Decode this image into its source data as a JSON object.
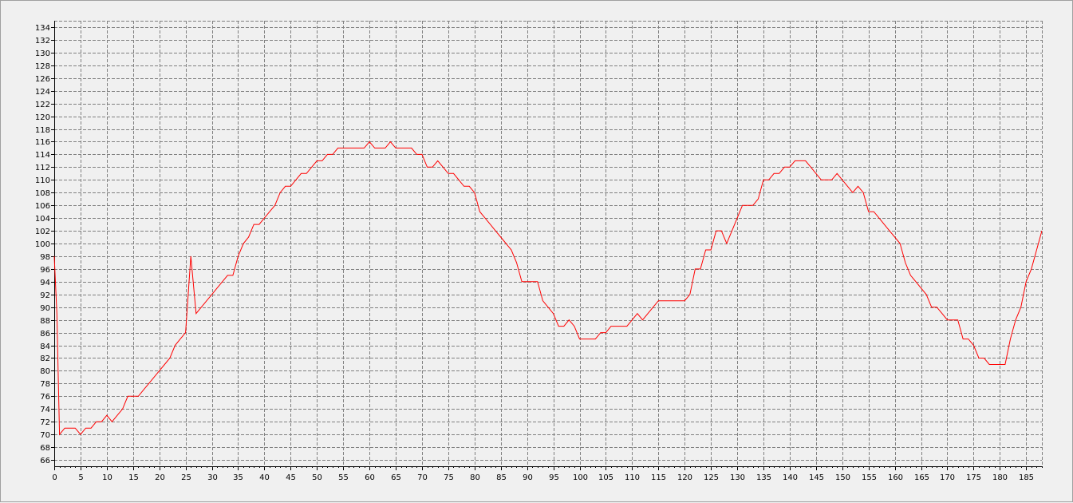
{
  "chart_data": {
    "type": "line",
    "title": "",
    "xlabel": "",
    "ylabel": "",
    "xlim": [
      0,
      188
    ],
    "ylim": [
      65,
      135
    ],
    "grid": true,
    "legend": "none",
    "line_color": "#ff0000",
    "y_ticks": [
      66,
      68,
      70,
      72,
      74,
      76,
      78,
      80,
      82,
      84,
      86,
      88,
      90,
      92,
      94,
      96,
      98,
      100,
      102,
      104,
      106,
      108,
      110,
      112,
      114,
      116,
      118,
      120,
      122,
      124,
      126,
      128,
      130,
      132,
      134
    ],
    "x_ticks": [
      0,
      5,
      10,
      15,
      20,
      25,
      30,
      35,
      40,
      45,
      50,
      55,
      60,
      65,
      70,
      75,
      80,
      85,
      90,
      95,
      100,
      105,
      110,
      115,
      120,
      125,
      130,
      135,
      140,
      145,
      150,
      155,
      160,
      165,
      170,
      175,
      180,
      185
    ],
    "series": [
      {
        "x": [
          0,
          0.5,
          1,
          2,
          3,
          4,
          5,
          6,
          7,
          8,
          9,
          10,
          11,
          12,
          13,
          14,
          15,
          16,
          17,
          18,
          19,
          20,
          21,
          22,
          23,
          24,
          25,
          26,
          27,
          28,
          29,
          30,
          31,
          32,
          33,
          34,
          35,
          36,
          37,
          38,
          39,
          40,
          41,
          42,
          43,
          44,
          45,
          46,
          47,
          48,
          49,
          50,
          51,
          52,
          53,
          54,
          55,
          56,
          57,
          58,
          59,
          60,
          61,
          62,
          63,
          64,
          65,
          66,
          67,
          68,
          69,
          70,
          71,
          72,
          73,
          74,
          75,
          76,
          77,
          78,
          79,
          80,
          81,
          82,
          83,
          84,
          85,
          86,
          87,
          88,
          89,
          90,
          91,
          92,
          93,
          94,
          95,
          96,
          97,
          98,
          99,
          100,
          101,
          102,
          103,
          104,
          105,
          106,
          107,
          108,
          109,
          110,
          111,
          112,
          113,
          114,
          115,
          116,
          117,
          118,
          119,
          120,
          121,
          122,
          123,
          124,
          125,
          126,
          127,
          128,
          129,
          130,
          131,
          132,
          133,
          134,
          135,
          136,
          137,
          138,
          139,
          140,
          141,
          142,
          143,
          144,
          145,
          146,
          147,
          148,
          149,
          150,
          151,
          152,
          153,
          154,
          155,
          156,
          157,
          158,
          159,
          160,
          161,
          162,
          163,
          164,
          165,
          166,
          167,
          168,
          169,
          170,
          171,
          172,
          173,
          174,
          175,
          176,
          177,
          178,
          179,
          180,
          181,
          182,
          183,
          184,
          185,
          186,
          187,
          188
        ],
        "y": [
          98,
          89,
          70,
          71,
          71,
          71,
          70,
          71,
          71,
          72,
          72,
          73,
          72,
          73,
          74,
          76,
          76,
          76,
          77,
          78,
          79,
          80,
          81,
          82,
          84,
          85,
          86,
          98,
          89,
          90,
          91,
          92,
          93,
          94,
          95,
          95,
          98,
          100,
          101,
          103,
          103,
          104,
          105,
          106,
          108,
          109,
          109,
          110,
          111,
          111,
          112,
          113,
          113,
          114,
          114,
          115,
          115,
          115,
          115,
          115,
          115,
          116,
          115,
          115,
          115,
          116,
          115,
          115,
          115,
          115,
          114,
          114,
          112,
          112,
          113,
          112,
          111,
          111,
          110,
          109,
          109,
          108,
          105,
          104,
          103,
          102,
          101,
          100,
          99,
          97,
          94,
          94,
          94,
          94,
          91,
          90,
          89,
          87,
          87,
          88,
          87,
          85,
          85,
          85,
          85,
          86,
          86,
          87,
          87,
          87,
          87,
          88,
          89,
          88,
          89,
          90,
          91,
          91,
          91,
          91,
          91,
          91,
          92,
          96,
          96,
          99,
          99,
          102,
          102,
          100,
          102,
          104,
          106,
          106,
          106,
          107,
          110,
          110,
          111,
          111,
          112,
          112,
          113,
          113,
          113,
          112,
          111,
          110,
          110,
          110,
          111,
          110,
          109,
          108,
          109,
          108,
          105,
          105,
          104,
          103,
          102,
          101,
          100,
          97,
          95,
          94,
          93,
          92,
          90,
          90,
          89,
          88,
          88,
          88,
          85,
          85,
          84,
          82,
          82,
          81,
          81,
          81,
          81,
          85,
          88,
          90,
          94,
          96,
          99,
          102
        ]
      }
    ]
  }
}
